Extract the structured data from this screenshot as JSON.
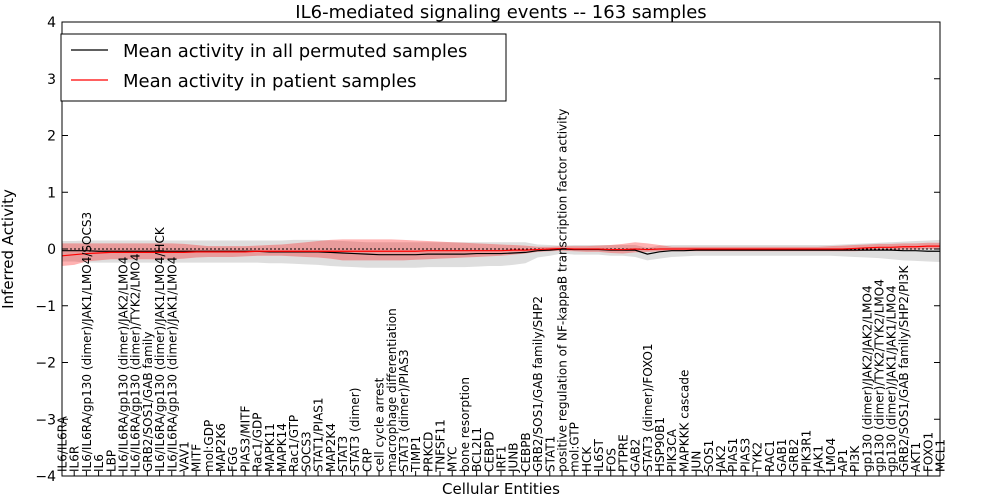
{
  "chart_data": {
    "type": "line",
    "title": "IL6-mediated signaling events -- 163 samples",
    "xlabel": "Cellular Entities",
    "ylabel": "Inferred Activity",
    "ylim": [
      -4,
      4
    ],
    "yticks": [
      "−4",
      "−3",
      "−2",
      "−1",
      "0",
      "1",
      "2",
      "3",
      "4"
    ],
    "legend": {
      "placement": "top-left",
      "entries": [
        {
          "label": "Mean activity in all permuted samples",
          "color": "#000000"
        },
        {
          "label": "Mean activity in patient samples",
          "color": "#ff0000"
        }
      ]
    },
    "categories": [
      "IL6/IL6RA",
      "IL6R",
      "IL6/IL6RA/gp130 (dimer)/JAK1/LMO4/SOCS3",
      "IL6",
      "LBP",
      "IL6/IL6RA/gp130 (dimer)/JAK2/LMO4",
      "IL6/IL6RA/gp130 (dimer)/TYK2/LMO4",
      "GRB2/SOS1/GAB family",
      "IL6/IL6RA/gp130 (dimer)/JAK1/LMO4/HCK",
      "IL6/IL6RA/gp130 (dimer)/JAK1/LMO4",
      "VAV1",
      "MITF",
      "mol:GDP",
      "MAP2K6",
      "FGG",
      "PIAS3/MITF",
      "Rac1/GDP",
      "MAPK11",
      "MAPK14",
      "Rac1/GTP",
      "SOCS3",
      "STAT1/PIAS1",
      "MAP2K4",
      "STAT3",
      "STAT3 (dimer)",
      "CRP",
      "cell cycle arrest",
      "macrophage differentiation",
      "STAT3 (dimer)/PIAS3",
      "TIMP1",
      "PRKCD",
      "TNFSF11",
      "MYC",
      "bone resorption",
      "BCL2L1",
      "CEBPD",
      "IRF1",
      "JUNB",
      "CEBPB",
      "GRB2/SOS1/GAB family/SHP2",
      "STAT1",
      "positive regulation of NF-kappaB transcription factor activity",
      "mol:GTP",
      "HCK",
      "IL6ST",
      "FOS",
      "PTPRE",
      "GAB2",
      "STAT3 (dimer)/FOXO1",
      "HSP90B1",
      "PIK3CA",
      "MAPKKK cascade",
      "JUN",
      "SOS1",
      "JAK2",
      "PIAS1",
      "PIAS3",
      "TYK2",
      "RAC1",
      "GAB1",
      "GRB2",
      "PIK3R1",
      "JAK1",
      "LMO4",
      "AP1",
      "PI3K",
      "gp130 (dimer)/JAK2/JAK2/LMO4",
      "gp130 (dimer)/TYK2/TYK2/LMO4",
      "gp130 (dimer)/JAK1/JAK1/LMO4",
      "GRB2/SOS1/GAB family/SHP2/PI3K",
      "AKT1",
      "FOXO1",
      "MCL1"
    ],
    "series": [
      {
        "name": "Mean activity in all permuted samples",
        "color": "#000000",
        "values": [
          -0.03,
          -0.03,
          -0.03,
          -0.04,
          -0.04,
          -0.04,
          -0.04,
          -0.04,
          -0.04,
          -0.04,
          -0.04,
          -0.04,
          -0.04,
          -0.04,
          -0.04,
          -0.04,
          -0.04,
          -0.05,
          -0.05,
          -0.05,
          -0.05,
          -0.05,
          -0.06,
          -0.07,
          -0.08,
          -0.09,
          -0.1,
          -0.1,
          -0.1,
          -0.1,
          -0.09,
          -0.09,
          -0.09,
          -0.09,
          -0.08,
          -0.08,
          -0.08,
          -0.07,
          -0.06,
          -0.03,
          -0.02,
          0.0,
          -0.01,
          -0.01,
          -0.01,
          -0.02,
          -0.02,
          -0.02,
          -0.09,
          -0.05,
          -0.03,
          -0.03,
          -0.02,
          -0.02,
          -0.02,
          -0.02,
          -0.02,
          -0.02,
          -0.02,
          -0.02,
          -0.02,
          -0.02,
          -0.02,
          -0.02,
          -0.02,
          -0.02,
          -0.02,
          -0.02,
          -0.02,
          -0.03,
          -0.03,
          -0.04,
          -0.04
        ],
        "lower": [
          -0.22,
          -0.22,
          -0.24,
          -0.24,
          -0.24,
          -0.24,
          -0.24,
          -0.24,
          -0.24,
          -0.24,
          -0.24,
          -0.24,
          -0.24,
          -0.24,
          -0.24,
          -0.24,
          -0.24,
          -0.25,
          -0.25,
          -0.26,
          -0.27,
          -0.28,
          -0.3,
          -0.31,
          -0.32,
          -0.33,
          -0.33,
          -0.33,
          -0.33,
          -0.33,
          -0.32,
          -0.32,
          -0.32,
          -0.32,
          -0.31,
          -0.3,
          -0.3,
          -0.28,
          -0.25,
          -0.15,
          -0.12,
          -0.08,
          -0.1,
          -0.1,
          -0.1,
          -0.12,
          -0.12,
          -0.14,
          -0.2,
          -0.17,
          -0.14,
          -0.13,
          -0.12,
          -0.12,
          -0.12,
          -0.12,
          -0.12,
          -0.12,
          -0.12,
          -0.12,
          -0.12,
          -0.12,
          -0.12,
          -0.12,
          -0.13,
          -0.14,
          -0.15,
          -0.16,
          -0.18,
          -0.2,
          -0.21,
          -0.22,
          -0.23
        ],
        "upper": [
          0.14,
          0.14,
          0.15,
          0.15,
          0.15,
          0.15,
          0.15,
          0.15,
          0.15,
          0.15,
          0.15,
          0.15,
          0.15,
          0.15,
          0.15,
          0.15,
          0.15,
          0.15,
          0.15,
          0.16,
          0.16,
          0.16,
          0.15,
          0.14,
          0.13,
          0.12,
          0.12,
          0.12,
          0.12,
          0.12,
          0.12,
          0.12,
          0.12,
          0.12,
          0.12,
          0.12,
          0.12,
          0.12,
          0.12,
          0.08,
          0.07,
          0.06,
          0.07,
          0.07,
          0.07,
          0.07,
          0.07,
          0.07,
          0.02,
          0.06,
          0.07,
          0.07,
          0.07,
          0.07,
          0.07,
          0.07,
          0.07,
          0.07,
          0.07,
          0.07,
          0.07,
          0.07,
          0.07,
          0.07,
          0.08,
          0.09,
          0.1,
          0.11,
          0.12,
          0.13,
          0.14,
          0.15,
          0.16
        ]
      },
      {
        "name": "Mean activity in patient samples",
        "color": "#ff0000",
        "values": [
          -0.12,
          -0.1,
          -0.08,
          -0.07,
          -0.06,
          -0.06,
          -0.06,
          -0.06,
          -0.06,
          -0.06,
          -0.06,
          -0.05,
          -0.05,
          -0.05,
          -0.05,
          -0.05,
          -0.04,
          -0.04,
          -0.04,
          -0.04,
          -0.04,
          -0.04,
          -0.04,
          -0.04,
          -0.04,
          -0.04,
          -0.04,
          -0.04,
          -0.04,
          -0.04,
          -0.03,
          -0.03,
          -0.03,
          -0.03,
          -0.03,
          -0.03,
          -0.03,
          -0.02,
          -0.02,
          -0.01,
          0.0,
          0.01,
          0.0,
          0.0,
          0.0,
          -0.01,
          -0.01,
          0.0,
          -0.01,
          0.0,
          0.0,
          0.0,
          0.0,
          0.0,
          0.0,
          0.0,
          0.0,
          0.0,
          0.0,
          0.0,
          0.0,
          0.0,
          0.0,
          0.0,
          0.0,
          0.01,
          0.02,
          0.03,
          0.03,
          0.04,
          0.04,
          0.05,
          0.05
        ],
        "lower": [
          -0.3,
          -0.28,
          -0.22,
          -0.2,
          -0.18,
          -0.18,
          -0.18,
          -0.18,
          -0.18,
          -0.18,
          -0.17,
          -0.15,
          -0.14,
          -0.14,
          -0.14,
          -0.13,
          -0.12,
          -0.12,
          -0.12,
          -0.13,
          -0.14,
          -0.15,
          -0.17,
          -0.2,
          -0.2,
          -0.2,
          -0.2,
          -0.2,
          -0.2,
          -0.19,
          -0.18,
          -0.17,
          -0.16,
          -0.15,
          -0.14,
          -0.13,
          -0.12,
          -0.1,
          -0.08,
          -0.05,
          -0.04,
          -0.03,
          -0.04,
          -0.05,
          -0.05,
          -0.07,
          -0.08,
          -0.06,
          -0.05,
          -0.04,
          -0.04,
          -0.04,
          -0.04,
          -0.04,
          -0.04,
          -0.04,
          -0.04,
          -0.04,
          -0.04,
          -0.04,
          -0.04,
          -0.04,
          -0.04,
          -0.04,
          -0.04,
          -0.04,
          -0.03,
          -0.02,
          -0.02,
          -0.01,
          -0.01,
          0.0,
          0.0
        ],
        "upper": [
          0.1,
          0.1,
          0.1,
          0.1,
          0.1,
          0.1,
          0.1,
          0.1,
          0.1,
          0.1,
          0.09,
          0.07,
          0.05,
          0.05,
          0.05,
          0.05,
          0.06,
          0.07,
          0.08,
          0.1,
          0.12,
          0.14,
          0.16,
          0.17,
          0.17,
          0.17,
          0.17,
          0.17,
          0.16,
          0.15,
          0.14,
          0.13,
          0.12,
          0.11,
          0.1,
          0.09,
          0.08,
          0.07,
          0.06,
          0.04,
          0.04,
          0.05,
          0.05,
          0.05,
          0.06,
          0.07,
          0.09,
          0.12,
          0.1,
          0.07,
          0.04,
          0.04,
          0.04,
          0.04,
          0.04,
          0.04,
          0.04,
          0.04,
          0.04,
          0.04,
          0.04,
          0.04,
          0.04,
          0.05,
          0.06,
          0.07,
          0.08,
          0.09,
          0.09,
          0.1,
          0.1,
          0.11,
          0.11
        ]
      }
    ]
  }
}
